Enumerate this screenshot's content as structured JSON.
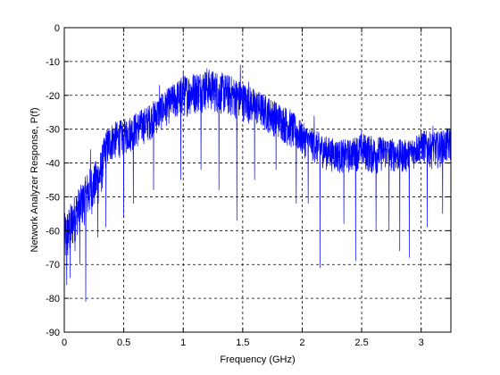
{
  "chart_data": {
    "type": "line",
    "title": "",
    "xlabel": "Frequency (GHz)",
    "ylabel": "Network Analyzer Response, P(f)",
    "xlim": [
      0,
      3.25
    ],
    "ylim": [
      -90,
      0
    ],
    "grid": true,
    "line_color": "#0000ff",
    "x_ticks": [
      0,
      0.5,
      1,
      1.5,
      2,
      2.5,
      3
    ],
    "x_tick_labels": [
      "0",
      "0.5",
      "1",
      "1.5",
      "2",
      "2.5",
      "3"
    ],
    "y_ticks": [
      0,
      -10,
      -20,
      -30,
      -40,
      -50,
      -60,
      -70,
      -80,
      -90
    ],
    "y_tick_labels": [
      "0",
      "-10",
      "-20",
      "-30",
      "-40",
      "-50",
      "-60",
      "-70",
      "-80",
      "-90"
    ],
    "series": [
      {
        "envelope": {
          "x": [
            0,
            0.05,
            0.1,
            0.15,
            0.2,
            0.25,
            0.3,
            0.35,
            0.4,
            0.5,
            0.6,
            0.7,
            0.8,
            0.9,
            1.0,
            1.1,
            1.2,
            1.3,
            1.4,
            1.5,
            1.6,
            1.7,
            1.8,
            1.9,
            2.0,
            2.1,
            2.2,
            2.3,
            2.4,
            2.5,
            2.6,
            2.7,
            2.8,
            2.9,
            3.0,
            3.1,
            3.2,
            3.25
          ],
          "upper": [
            -55,
            -52,
            -48,
            -46,
            -42,
            -40,
            -37,
            -30,
            -28,
            -27,
            -25,
            -23,
            -20,
            -17,
            -14,
            -13,
            -12,
            -13,
            -14,
            -16,
            -18,
            -20,
            -22,
            -24,
            -28,
            -30,
            -32,
            -33,
            -33,
            -31,
            -32,
            -32,
            -33,
            -33,
            -30,
            -31,
            -30,
            -29
          ],
          "lower": [
            -75,
            -72,
            -65,
            -62,
            -60,
            -57,
            -55,
            -45,
            -42,
            -40,
            -38,
            -36,
            -33,
            -30,
            -29,
            -28,
            -27,
            -28,
            -29,
            -30,
            -31,
            -33,
            -35,
            -38,
            -40,
            -42,
            -44,
            -45,
            -45,
            -44,
            -46,
            -44,
            -45,
            -45,
            -42,
            -44,
            -43,
            -42
          ]
        },
        "dips": [
          {
            "x": 0.02,
            "y": -76
          },
          {
            "x": 0.05,
            "y": -74
          },
          {
            "x": 0.09,
            "y": -66
          },
          {
            "x": 0.13,
            "y": -70
          },
          {
            "x": 0.18,
            "y": -81
          },
          {
            "x": 0.22,
            "y": -68
          },
          {
            "x": 0.28,
            "y": -62
          },
          {
            "x": 0.35,
            "y": -59
          },
          {
            "x": 0.5,
            "y": -56
          },
          {
            "x": 0.58,
            "y": -52
          },
          {
            "x": 0.75,
            "y": -48
          },
          {
            "x": 0.98,
            "y": -45
          },
          {
            "x": 1.15,
            "y": -42
          },
          {
            "x": 1.3,
            "y": -48
          },
          {
            "x": 1.45,
            "y": -57
          },
          {
            "x": 1.6,
            "y": -45
          },
          {
            "x": 1.78,
            "y": -42
          },
          {
            "x": 1.95,
            "y": -52
          },
          {
            "x": 2.05,
            "y": -52
          },
          {
            "x": 2.15,
            "y": -71
          },
          {
            "x": 2.35,
            "y": -58
          },
          {
            "x": 2.45,
            "y": -69
          },
          {
            "x": 2.5,
            "y": -66
          },
          {
            "x": 2.62,
            "y": -60
          },
          {
            "x": 2.73,
            "y": -60
          },
          {
            "x": 2.82,
            "y": -66
          },
          {
            "x": 2.9,
            "y": -68
          },
          {
            "x": 3.05,
            "y": -59
          },
          {
            "x": 3.18,
            "y": -55
          }
        ],
        "peaks": [
          {
            "x": 0.22,
            "y": -36
          },
          {
            "x": 0.8,
            "y": -17
          },
          {
            "x": 1.0,
            "y": -13
          },
          {
            "x": 1.2,
            "y": -12
          },
          {
            "x": 1.48,
            "y": -11
          },
          {
            "x": 1.55,
            "y": -16
          },
          {
            "x": 2.1,
            "y": -26
          },
          {
            "x": 2.5,
            "y": -30
          },
          {
            "x": 3.1,
            "y": -29
          }
        ]
      }
    ]
  }
}
